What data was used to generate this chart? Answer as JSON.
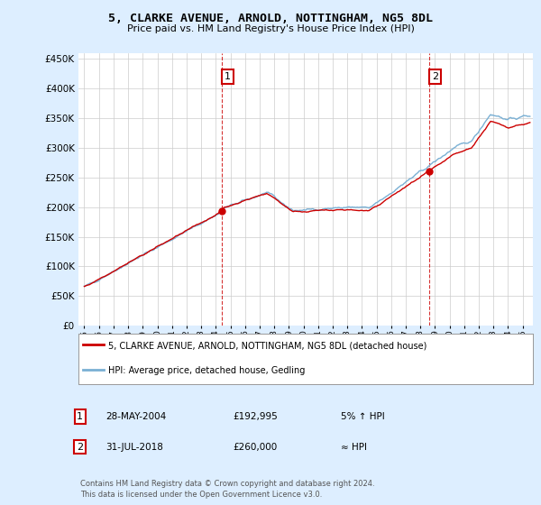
{
  "title": "5, CLARKE AVENUE, ARNOLD, NOTTINGHAM, NG5 8DL",
  "subtitle": "Price paid vs. HM Land Registry's House Price Index (HPI)",
  "legend_property": "5, CLARKE AVENUE, ARNOLD, NOTTINGHAM, NG5 8DL (detached house)",
  "legend_hpi": "HPI: Average price, detached house, Gedling",
  "annotation1_date": "28-MAY-2004",
  "annotation1_price": "£192,995",
  "annotation1_note": "5% ↑ HPI",
  "annotation2_date": "31-JUL-2018",
  "annotation2_price": "£260,000",
  "annotation2_note": "≈ HPI",
  "footer": "Contains HM Land Registry data © Crown copyright and database right 2024.\nThis data is licensed under the Open Government Licence v3.0.",
  "property_color": "#cc0000",
  "hpi_color": "#7ab0d4",
  "background_color": "#ddeeff",
  "plot_bg_color": "#ffffff",
  "yticks": [
    0,
    50000,
    100000,
    150000,
    200000,
    250000,
    300000,
    350000,
    400000,
    450000
  ],
  "sale1_year": 2004.41,
  "sale1_price": 192995,
  "sale2_year": 2018.58,
  "sale2_price": 260000
}
